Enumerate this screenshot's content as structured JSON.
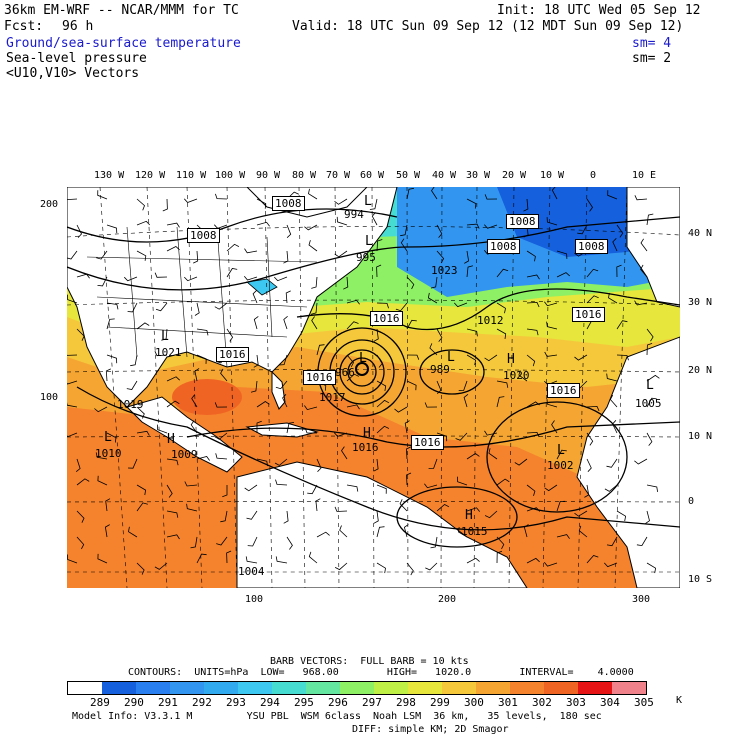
{
  "header": {
    "model_title": "36km EM-WRF -- NCAR/MMM for TC",
    "init": "Init: 18 UTC Wed 05 Sep 12",
    "fcst_label": "Fcst:",
    "fcst_value": "96 h",
    "valid": "Valid: 18 UTC Sun 09 Sep 12 (12 MDT Sun 09 Sep 12)",
    "field1": "Ground/sea-surface temperature",
    "field1_sm": "sm= 4",
    "field2": "Sea-level pressure",
    "field2_sm": "sm= 2",
    "field3": "<U10,V10> Vectors"
  },
  "map": {
    "lon_labels": [
      "130 W",
      "120 W",
      "110 W",
      "100 W",
      "90 W",
      "80 W",
      "70 W",
      "60 W",
      "50 W",
      "40 W",
      "30 W",
      "20 W",
      "10 W",
      "0",
      "10 E"
    ],
    "lat_labels": [
      "40 N",
      "30 N",
      "20 N",
      "10 N",
      "0",
      "10 S"
    ],
    "grid_y_labels": [
      "200",
      "100"
    ],
    "grid_x_labels": [
      "100",
      "200",
      "300"
    ],
    "pressure_boxes": [
      "1008",
      "1008",
      "1008",
      "1008",
      "1008",
      "1016",
      "1016",
      "1016",
      "1016",
      "1016",
      "1016"
    ],
    "pressure_labels": [
      "994",
      "995",
      "1023",
      "1012",
      "1021",
      "1017",
      "966",
      "989",
      "1020",
      "1019",
      "1010",
      "1009",
      "1016",
      "1002",
      "1015",
      "1005",
      "1004"
    ],
    "centers": [
      "L",
      "L",
      "L",
      "H",
      "L",
      "H",
      "L",
      "H",
      "L",
      "L",
      "H",
      "L"
    ]
  },
  "footer": {
    "barb_vectors": "BARB VECTORS:  FULL BARB = 10 kts",
    "contours": "CONTOURS:  UNITS=hPa  LOW=   968.00        HIGH=   1020.0        INTERVAL=    4.0000",
    "colorbar_labels": [
      "289",
      "290",
      "291",
      "292",
      "293",
      "294",
      "295",
      "296",
      "297",
      "298",
      "299",
      "300",
      "301",
      "302",
      "303",
      "304",
      "305"
    ],
    "colorbar_unit": "K",
    "colorbar_colors": [
      "#ffffff",
      "#1560dc",
      "#2a7ff0",
      "#3296f0",
      "#32aaf0",
      "#3cc8f0",
      "#46dcd2",
      "#64e6a0",
      "#8ef064",
      "#bef046",
      "#e6e63c",
      "#f5c83c",
      "#f5a532",
      "#f5822d",
      "#f06423",
      "#e61414",
      "#f0828c"
    ],
    "model_info": "Model Info: V3.3.1 M         YSU PBL  WSM 6class  Noah LSM  36 km,   35 levels,  180 sec",
    "model_info2": "DIFF: simple KM; 2D Smagor"
  }
}
